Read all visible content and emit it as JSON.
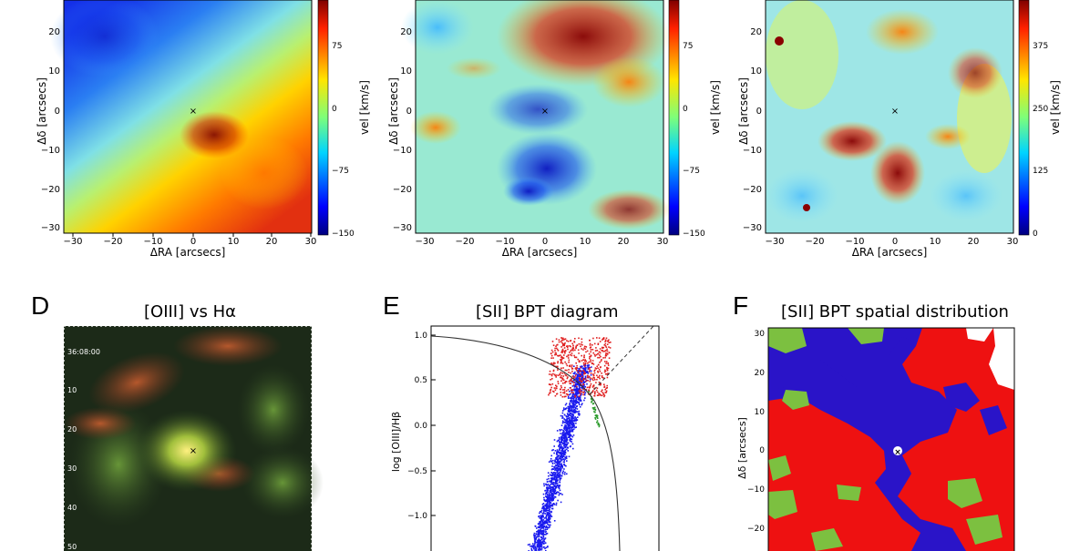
{
  "figure": {
    "top_row": [
      {
        "id": "A",
        "xlabel": "ΔRA [arcsecs]",
        "ylabel": "Δδ [arcsecs]",
        "x_ticks": [
          "−30",
          "−20",
          "−10",
          "0",
          "10",
          "20",
          "30"
        ],
        "y_ticks": [
          "20",
          "10",
          "0",
          "−10",
          "−20",
          "−30"
        ],
        "colorbar_label": "vel [km/s]",
        "colorbar_ticks": [
          "75",
          "0",
          "−75",
          "−150"
        ],
        "center_marker": "×"
      },
      {
        "id": "B",
        "xlabel": "ΔRA [arcsecs]",
        "ylabel": "Δδ [arcsecs]",
        "x_ticks": [
          "−30",
          "−20",
          "−10",
          "0",
          "10",
          "20",
          "30"
        ],
        "y_ticks": [
          "20",
          "10",
          "0",
          "−10",
          "−20",
          "−30"
        ],
        "colorbar_label": "vel [km/s]",
        "colorbar_ticks": [
          "75",
          "0",
          "−75",
          "−150"
        ],
        "center_marker": "×"
      },
      {
        "id": "C",
        "xlabel": "ΔRA [arcsecs]",
        "ylabel": "Δδ [arcsecs]",
        "x_ticks": [
          "−30",
          "−20",
          "−10",
          "0",
          "10",
          "20",
          "30"
        ],
        "y_ticks": [
          "20",
          "10",
          "0",
          "−10",
          "−20",
          "−30"
        ],
        "colorbar_label": "vel [km/s]",
        "colorbar_ticks": [
          "375",
          "250",
          "125",
          "0"
        ],
        "center_marker": "×"
      }
    ],
    "panel_d": {
      "letter": "D",
      "title": "[OIII] vs Hα",
      "dec_labels": [
        "36:08:00",
        "10",
        "20",
        "30",
        "40",
        "50"
      ],
      "center_marker": "×"
    },
    "panel_e": {
      "letter": "E",
      "title": "[SII] BPT diagram",
      "ylabel": "log [OIII]/Hβ",
      "y_ticks": [
        "1.0",
        "0.5",
        "0.0",
        "−0.5",
        "−1.0"
      ],
      "colors": {
        "upper": "#e02020",
        "lower": "#1a1aee",
        "between": "#2a9a2a"
      }
    },
    "panel_f": {
      "letter": "F",
      "title": "[SII] BPT spatial distribution",
      "ylabel": "Δδ [arcsecs]",
      "y_ticks": [
        "30",
        "20",
        "10",
        "0",
        "−10",
        "−20"
      ],
      "colors": {
        "red": "#ee1111",
        "blue": "#2a14c8",
        "green": "#7cc040"
      }
    }
  }
}
